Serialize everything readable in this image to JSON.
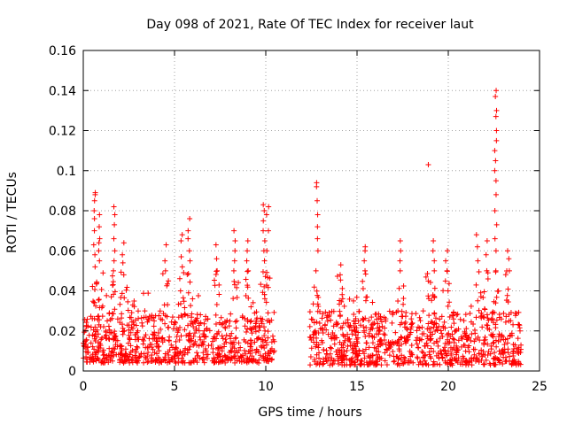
{
  "chart_data": {
    "type": "scatter",
    "title": "Day 098 of 2021, Rate Of TEC Index for receiver laut",
    "xlabel": "GPS time / hours",
    "ylabel": "ROTI / TECUs",
    "xlim": [
      0,
      25
    ],
    "ylim": [
      0,
      0.16
    ],
    "x_ticks": [
      0,
      5,
      10,
      15,
      20,
      25
    ],
    "x_tick_labels": [
      "0",
      "5",
      "10",
      "15",
      "20",
      "25"
    ],
    "y_ticks": [
      0,
      0.02,
      0.04,
      0.06,
      0.08,
      0.1,
      0.12,
      0.14,
      0.16
    ],
    "y_tick_labels": [
      "0",
      "0.02",
      "0.04",
      "0.06",
      "0.08",
      "0.1",
      "0.12",
      "0.14",
      "0.16"
    ],
    "grid": true,
    "marker": "+",
    "color": "#ff0000",
    "series": [
      {
        "name": "ROTI",
        "segments": [
          {
            "x_range": [
              0,
              10.5
            ],
            "base_low": 0.004,
            "base_high": 0.03
          },
          {
            "x_range": [
              12.4,
              24
            ],
            "base_low": 0.003,
            "base_high": 0.03
          }
        ],
        "spikes": [
          {
            "x": 0.6,
            "values": [
              0.052,
              0.058,
              0.063,
              0.07,
              0.076,
              0.08,
              0.085,
              0.088,
              0.089
            ]
          },
          {
            "x": 0.9,
            "values": [
              0.055,
              0.06,
              0.064,
              0.066,
              0.072,
              0.078
            ]
          },
          {
            "x": 1.7,
            "values": [
              0.05,
              0.055,
              0.06,
              0.066,
              0.073,
              0.078,
              0.082
            ]
          },
          {
            "x": 2.2,
            "values": [
              0.048,
              0.054,
              0.058,
              0.064
            ]
          },
          {
            "x": 4.5,
            "values": [
              0.05,
              0.055,
              0.063
            ]
          },
          {
            "x": 5.4,
            "values": [
              0.052,
              0.057,
              0.065,
              0.068
            ]
          },
          {
            "x": 5.8,
            "values": [
              0.055,
              0.06,
              0.066,
              0.07,
              0.076
            ]
          },
          {
            "x": 7.3,
            "values": [
              0.05,
              0.056,
              0.063
            ]
          },
          {
            "x": 8.3,
            "values": [
              0.05,
              0.055,
              0.06,
              0.065,
              0.07
            ]
          },
          {
            "x": 9.0,
            "values": [
              0.05,
              0.055,
              0.06,
              0.065
            ]
          },
          {
            "x": 9.9,
            "values": [
              0.055,
              0.06,
              0.065,
              0.07,
              0.075,
              0.08,
              0.083
            ]
          },
          {
            "x": 10.1,
            "values": [
              0.06,
              0.07,
              0.078,
              0.082
            ]
          },
          {
            "x": 12.8,
            "values": [
              0.05,
              0.06,
              0.066,
              0.072,
              0.078,
              0.085,
              0.092,
              0.094
            ]
          },
          {
            "x": 14.1,
            "values": [
              0.048,
              0.053
            ]
          },
          {
            "x": 15.4,
            "values": [
              0.05,
              0.055,
              0.06,
              0.062
            ]
          },
          {
            "x": 17.4,
            "values": [
              0.05,
              0.055,
              0.06,
              0.065
            ]
          },
          {
            "x": 18.9,
            "values": [
              0.103
            ]
          },
          {
            "x": 19.2,
            "values": [
              0.05,
              0.055,
              0.06,
              0.065
            ]
          },
          {
            "x": 19.9,
            "values": [
              0.05,
              0.055,
              0.06
            ]
          },
          {
            "x": 21.6,
            "values": [
              0.055,
              0.062,
              0.068
            ]
          },
          {
            "x": 22.1,
            "values": [
              0.05,
              0.058,
              0.065
            ]
          },
          {
            "x": 22.6,
            "values": [
              0.05,
              0.06,
              0.066,
              0.073,
              0.08,
              0.088,
              0.095,
              0.1,
              0.105,
              0.11,
              0.115,
              0.12,
              0.127,
              0.13,
              0.137,
              0.14
            ]
          },
          {
            "x": 23.3,
            "values": [
              0.05,
              0.056,
              0.06
            ]
          }
        ]
      }
    ]
  }
}
